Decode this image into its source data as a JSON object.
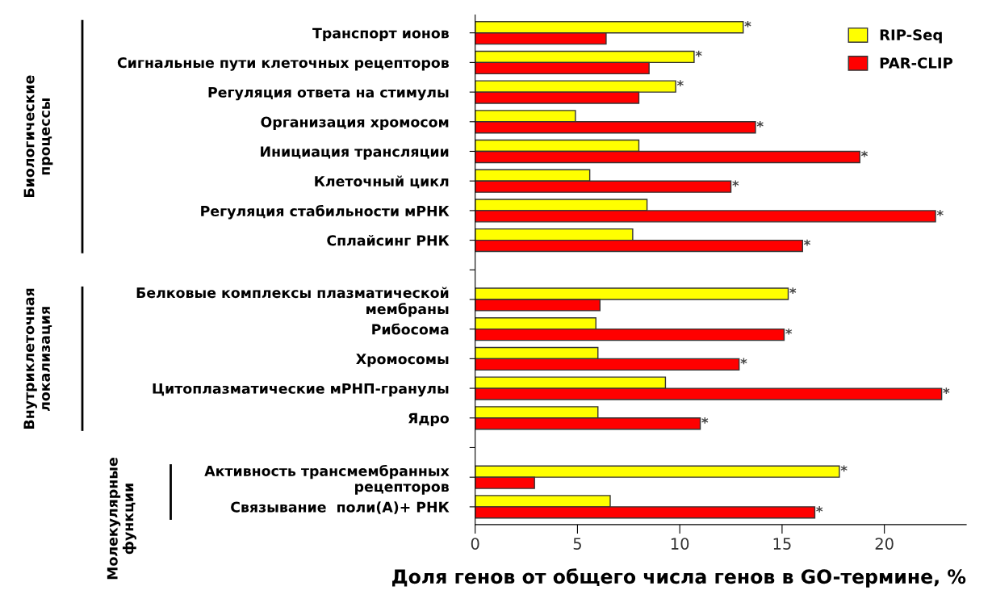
{
  "chart_data": {
    "type": "bar",
    "orientation": "horizontal",
    "xlabel": "Доля генов от общего числа генов в GO-термине, %",
    "categories": [
      "Транспорт ионов",
      "Сигнальные пути клеточных рецепторов",
      "Регуляция ответа на стимулы",
      "Организация хромосом",
      "Инициация трансляции",
      "Клеточный цикл",
      "Регуляция стабильности мРНК",
      "Сплайсинг РНК",
      null,
      "Белковые комплексы плазматической\nмембраны",
      "Рибосома",
      "Хромосомы",
      "Цитоплазматические мРНП-гранулы",
      "Ядро",
      null,
      "Активность трансмембранных\nрецепторов",
      "Связывание  поли(A)+ РНК"
    ],
    "series": [
      {
        "name": "RIP-Seq",
        "color": "#ffff00",
        "values": [
          13.1,
          10.7,
          9.8,
          4.9,
          8.0,
          5.6,
          8.4,
          7.7,
          null,
          15.3,
          5.9,
          6.0,
          9.3,
          6.0,
          null,
          17.8,
          6.6
        ],
        "value_labels": [
          "*",
          "*",
          "*",
          null,
          null,
          null,
          null,
          null,
          null,
          "*",
          null,
          null,
          null,
          null,
          null,
          "*",
          null
        ]
      },
      {
        "name": "PAR-CLIP",
        "color": "#ff0000",
        "values": [
          6.4,
          8.5,
          8.0,
          13.7,
          18.8,
          12.5,
          22.5,
          16.0,
          null,
          6.1,
          15.1,
          12.9,
          22.8,
          11.0,
          null,
          2.9,
          16.6
        ],
        "value_labels": [
          null,
          null,
          null,
          "*",
          "*",
          "*",
          "*",
          "*",
          null,
          null,
          "*",
          "*",
          "*",
          "*",
          null,
          null,
          "*"
        ]
      }
    ],
    "xlim": [
      0,
      24
    ],
    "xticks": [
      0,
      5,
      10,
      15,
      20
    ],
    "annotations": [
      "Биологические\nпроцессы",
      "Внутриклеточная\nлокализация",
      "Молекулярные\nфункции"
    ],
    "legend": "top right",
    "grid": false
  }
}
